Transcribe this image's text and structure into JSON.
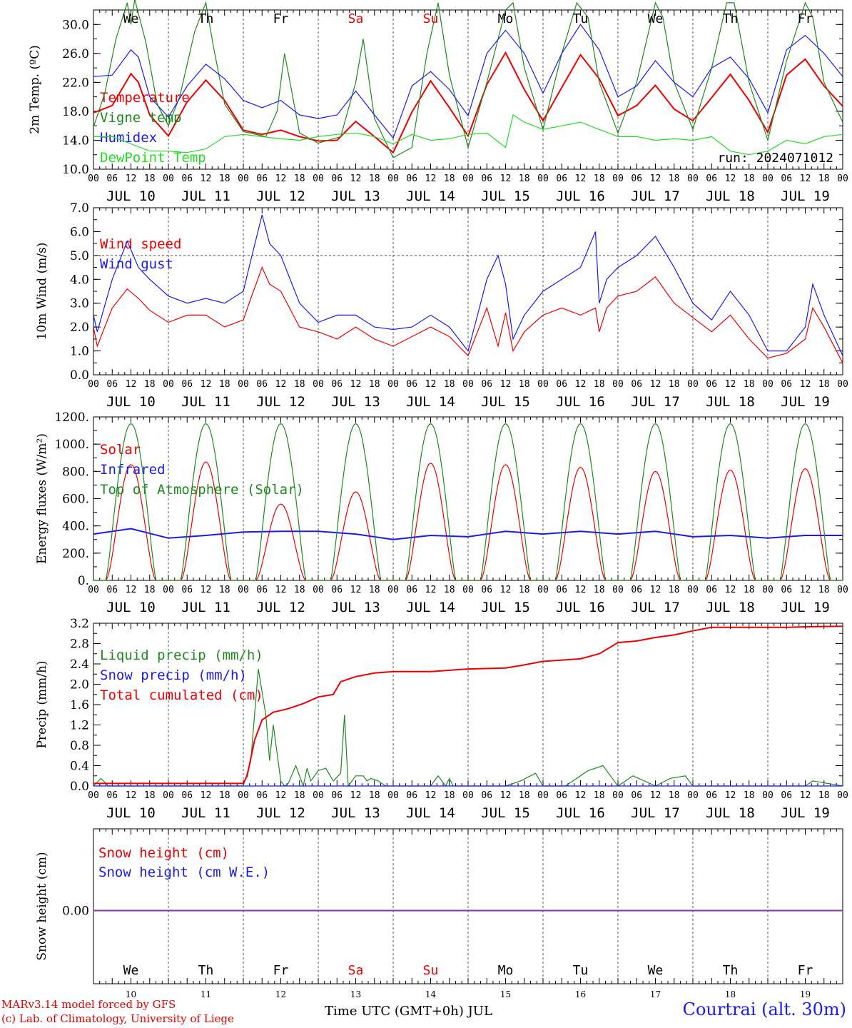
{
  "colors": {
    "red": "#ee0000",
    "darkgreen": "#1e8a1e",
    "blue": "#1a1aee",
    "lightgreen": "#22dd22",
    "weekend": "#ee0000",
    "purple": "#7a3aa0"
  },
  "weekdays": [
    "We",
    "Th",
    "Fr",
    "Sa",
    "Su",
    "Mo",
    "Tu",
    "We",
    "Th",
    "Fr"
  ],
  "weekend_flags": [
    false,
    false,
    false,
    true,
    true,
    false,
    false,
    false,
    false,
    false
  ],
  "hour_ticks": [
    "00",
    "06",
    "12",
    "18"
  ],
  "date_labels": [
    "JUL 10",
    "JUL 11",
    "JUL 12",
    "JUL 13",
    "JUL 14",
    "JUL 15",
    "JUL 16",
    "JUL 17",
    "JUL 18",
    "JUL 19"
  ],
  "day_numbers": [
    "10",
    "11",
    "12",
    "13",
    "14",
    "15",
    "16",
    "17",
    "18",
    "19"
  ],
  "footer": {
    "credit_line1": "MARv3.14 model forced by GFS",
    "credit_line2": "(c) Lab. of Climatology, University of Liege",
    "x_title": "Time UTC (GMT+0h) JUL",
    "station": "Courtrai (alt. 30m)"
  },
  "chart_data": [
    {
      "type": "line",
      "ylabel": "2m Temp. (ºC)",
      "ylim": [
        10,
        32
      ],
      "yticks": [
        "10.0",
        "14.0",
        "18.0",
        "22.0",
        "26.0",
        "30.0"
      ],
      "run_label": "run: 2024071012",
      "x_unit": "days since JUL 10 00 UTC",
      "series": [
        {
          "name": "Temperature",
          "color": "#ee0000",
          "x": [
            0,
            0.25,
            0.5,
            0.6,
            0.75,
            1,
            1.25,
            1.5,
            1.75,
            2,
            2.25,
            2.5,
            2.75,
            3,
            3.25,
            3.5,
            3.75,
            4,
            4.25,
            4.5,
            4.75,
            5,
            5.25,
            5.5,
            5.75,
            6,
            6.25,
            6.5,
            6.75,
            7,
            7.25,
            7.5,
            7.75,
            8,
            8.25,
            8.5,
            8.75,
            9,
            9.25,
            9.5,
            9.75,
            10
          ],
          "y": [
            17.8,
            18.8,
            23.2,
            22.0,
            17.5,
            14.6,
            19.3,
            22.3,
            19.5,
            15.4,
            14.8,
            15.4,
            14.5,
            13.9,
            14.0,
            16.6,
            14.5,
            12.3,
            17.9,
            22.2,
            18.5,
            14.6,
            21.7,
            26.1,
            21.0,
            16.7,
            21.3,
            25.8,
            22.5,
            17.4,
            18.8,
            21.6,
            18.3,
            16.7,
            19.9,
            23.1,
            19.5,
            15.1,
            23.0,
            25.2,
            21.5,
            18.7
          ]
        },
        {
          "name": "Vigne temp",
          "color": "#1e8a1e",
          "x": [
            0,
            0.15,
            0.3,
            0.45,
            0.5,
            0.55,
            0.7,
            0.85,
            1,
            1.15,
            1.35,
            1.5,
            1.6,
            1.75,
            2,
            2.3,
            2.45,
            2.55,
            2.75,
            3,
            3.3,
            3.5,
            3.6,
            3.75,
            4,
            4.25,
            4.45,
            4.6,
            4.75,
            5,
            5.25,
            5.5,
            5.6,
            5.75,
            6,
            6.25,
            6.45,
            6.6,
            6.75,
            7,
            7.25,
            7.5,
            7.6,
            7.75,
            8,
            8.25,
            8.45,
            8.55,
            8.75,
            9,
            9.25,
            9.5,
            9.6,
            9.75,
            10
          ],
          "y": [
            15.8,
            20.5,
            28.0,
            33.0,
            30.0,
            33.5,
            27.5,
            19.0,
            16.0,
            20.0,
            29.0,
            33.0,
            27.0,
            19.0,
            15.2,
            14.5,
            18.0,
            26.0,
            15.0,
            13.6,
            14.5,
            22.0,
            28.0,
            17.0,
            11.6,
            13.0,
            26.0,
            33.0,
            23.0,
            13.0,
            22.0,
            32.0,
            33.0,
            24.0,
            15.5,
            26.0,
            33.0,
            31.0,
            22.0,
            15.0,
            22.0,
            33.0,
            31.0,
            22.0,
            15.5,
            24.0,
            33.0,
            33.0,
            22.0,
            14.0,
            25.0,
            33.0,
            31.0,
            22.0,
            16.5
          ]
        },
        {
          "name": "Humidex",
          "color": "#1a1aee",
          "x": [
            0,
            0.25,
            0.5,
            0.6,
            0.75,
            1,
            1.25,
            1.5,
            1.75,
            2,
            2.25,
            2.5,
            2.75,
            3,
            3.25,
            3.5,
            3.75,
            4,
            4.25,
            4.5,
            4.75,
            5,
            5.25,
            5.5,
            5.75,
            6,
            6.25,
            6.5,
            6.75,
            7,
            7.25,
            7.5,
            7.75,
            8,
            8.25,
            8.5,
            8.75,
            9,
            9.25,
            9.5,
            9.75,
            10
          ],
          "y": [
            22.8,
            23.0,
            26.5,
            25.5,
            20.0,
            17.2,
            21.5,
            24.5,
            22.5,
            19.5,
            18.5,
            19.5,
            17.5,
            17.0,
            17.5,
            20.8,
            17.5,
            14.3,
            21.5,
            23.5,
            21.0,
            17.4,
            26.0,
            29.2,
            26.0,
            20.5,
            26.0,
            30.0,
            26.5,
            20.0,
            21.5,
            25.0,
            22.0,
            20.0,
            24.0,
            25.5,
            22.5,
            17.8,
            26.5,
            28.5,
            26.0,
            22.8
          ]
        },
        {
          "name": "DewPoint Temp",
          "color": "#22dd22",
          "x": [
            0,
            0.25,
            0.5,
            0.75,
            1,
            1.25,
            1.5,
            1.75,
            2,
            2.25,
            2.5,
            2.75,
            3,
            3.25,
            3.5,
            3.75,
            4,
            4.25,
            4.5,
            4.75,
            5,
            5.25,
            5.5,
            5.6,
            5.75,
            6,
            6.25,
            6.5,
            6.75,
            7,
            7.25,
            7.5,
            7.75,
            8,
            8.25,
            8.5,
            8.75,
            9,
            9.25,
            9.5,
            9.75,
            10
          ],
          "y": [
            14.5,
            14.5,
            13.5,
            12.5,
            12.5,
            12.3,
            12.8,
            14.5,
            14.8,
            14.5,
            14.2,
            14.0,
            14.5,
            14.8,
            15.0,
            14.5,
            13.5,
            14.8,
            14.0,
            14.2,
            14.8,
            15.0,
            13.0,
            17.5,
            16.5,
            15.5,
            16.0,
            16.5,
            15.5,
            14.5,
            14.5,
            14.0,
            14.2,
            14.0,
            14.5,
            12.5,
            12.0,
            12.5,
            14.0,
            13.5,
            14.5,
            14.8
          ]
        }
      ]
    },
    {
      "type": "line",
      "ylabel": "10m Wind (m/s)",
      "ylim": [
        0,
        7
      ],
      "yticks": [
        "0.0",
        "1.0",
        "2.0",
        "3.0",
        "4.0",
        "5.0",
        "6.0",
        "7.0"
      ],
      "ref_line": 5.0,
      "series": [
        {
          "name": "Wind speed",
          "color": "#ee0000",
          "x": [
            0,
            0.05,
            0.25,
            0.45,
            0.6,
            0.75,
            1,
            1.25,
            1.5,
            1.75,
            2,
            2.1,
            2.25,
            2.35,
            2.5,
            2.75,
            3,
            3.25,
            3.5,
            3.75,
            4,
            4.25,
            4.5,
            4.75,
            5,
            5.25,
            5.4,
            5.5,
            5.6,
            5.75,
            6,
            6.25,
            6.5,
            6.7,
            6.75,
            6.85,
            7,
            7.25,
            7.5,
            7.75,
            8,
            8.25,
            8.5,
            8.75,
            9,
            9.25,
            9.5,
            9.6,
            9.75,
            10
          ],
          "y": [
            2.0,
            1.2,
            2.8,
            3.6,
            3.2,
            2.7,
            2.2,
            2.5,
            2.5,
            2.0,
            2.3,
            3.2,
            4.5,
            3.8,
            3.5,
            2.0,
            1.8,
            1.5,
            2.0,
            1.5,
            1.2,
            1.6,
            2.0,
            1.6,
            0.8,
            2.8,
            1.2,
            2.6,
            1.0,
            1.8,
            2.5,
            2.8,
            2.5,
            2.8,
            1.8,
            2.8,
            3.3,
            3.5,
            4.1,
            3.0,
            2.4,
            1.8,
            2.5,
            1.5,
            0.7,
            0.9,
            1.5,
            2.8,
            2.0,
            0.5
          ]
        },
        {
          "name": "Wind gust",
          "color": "#1a1aee",
          "x": [
            0,
            0.05,
            0.25,
            0.45,
            0.6,
            0.75,
            1,
            1.25,
            1.5,
            1.75,
            2,
            2.1,
            2.25,
            2.35,
            2.5,
            2.75,
            3,
            3.25,
            3.5,
            3.75,
            4,
            4.25,
            4.5,
            4.75,
            5,
            5.25,
            5.4,
            5.5,
            5.6,
            5.75,
            6,
            6.25,
            6.5,
            6.7,
            6.75,
            6.85,
            7,
            7.25,
            7.5,
            7.75,
            8,
            8.25,
            8.5,
            8.75,
            9,
            9.25,
            9.5,
            9.6,
            9.75,
            10
          ],
          "y": [
            2.5,
            1.8,
            4.0,
            5.6,
            4.5,
            4.0,
            3.3,
            3.0,
            3.2,
            3.0,
            3.5,
            4.8,
            6.7,
            5.5,
            5.0,
            3.0,
            2.2,
            2.5,
            2.5,
            2.0,
            1.9,
            2.0,
            2.5,
            2.0,
            1.0,
            4.0,
            5.0,
            3.8,
            1.5,
            2.5,
            3.5,
            4.0,
            4.5,
            6.0,
            3.0,
            4.0,
            4.5,
            5.0,
            5.8,
            4.5,
            3.0,
            2.3,
            3.5,
            2.5,
            1.0,
            1.0,
            2.0,
            3.8,
            2.5,
            0.8
          ]
        }
      ]
    },
    {
      "type": "line",
      "ylabel": "Energy fluxes (W/m²)",
      "ylim": [
        0,
        1200
      ],
      "yticks": [
        "0.",
        "200.",
        "400.",
        "600.",
        "800.",
        "1000.",
        "1200."
      ],
      "series": [
        {
          "name": "Solar",
          "color": "#ee0000",
          "daily_peaks": [
            850,
            870,
            560,
            650,
            860,
            850,
            830,
            800,
            810,
            820
          ]
        },
        {
          "name": "Infrared",
          "color": "#1a1aee",
          "x": [
            0,
            0.5,
            1,
            1.5,
            2,
            2.5,
            3,
            3.5,
            4,
            4.5,
            5,
            5.5,
            6,
            6.5,
            7,
            7.5,
            8,
            8.5,
            9,
            9.5,
            10
          ],
          "y": [
            340,
            380,
            310,
            330,
            355,
            360,
            360,
            340,
            300,
            330,
            320,
            360,
            340,
            360,
            340,
            360,
            320,
            330,
            310,
            330,
            330
          ]
        },
        {
          "name": "Top of Atmosphere (Solar)",
          "color": "#1e8a1e",
          "daily_peaks": [
            1150,
            1150,
            1150,
            1150,
            1150,
            1150,
            1150,
            1150,
            1150,
            1150
          ]
        }
      ]
    },
    {
      "type": "line",
      "ylabel": "Precip (mm/h)",
      "ylim": [
        0,
        3.2
      ],
      "yticks": [
        "0.0",
        "0.4",
        "0.8",
        "1.2",
        "1.6",
        "2.0",
        "2.4",
        "2.8",
        "3.2"
      ],
      "series": [
        {
          "name": "Liquid precip (mm/h)",
          "color": "#1e8a1e",
          "x": [
            0,
            0.1,
            0.2,
            0.25,
            2.0,
            2.1,
            2.2,
            2.3,
            2.35,
            2.4,
            2.5,
            2.55,
            2.6,
            2.7,
            2.8,
            2.85,
            2.9,
            3.0,
            3.1,
            3.2,
            3.3,
            3.35,
            3.4,
            3.5,
            3.6,
            3.65,
            3.7,
            3.8,
            3.9,
            4.0,
            4.5,
            4.6,
            4.7,
            4.75,
            4.8,
            5.0,
            5.5,
            5.7,
            5.9,
            6.0,
            6.3,
            6.6,
            6.8,
            6.9,
            7.0,
            7.2,
            7.5,
            7.7,
            7.9,
            8.0,
            8.1,
            9.5,
            9.6,
            10
          ],
          "y": [
            0,
            0.15,
            0,
            0,
            0,
            0.5,
            2.3,
            1.4,
            0.5,
            1.2,
            0.1,
            0,
            0.05,
            0.4,
            0,
            0.35,
            0.1,
            0.3,
            0.35,
            0.1,
            0.25,
            1.4,
            0,
            0.2,
            0.2,
            0.1,
            0.15,
            0.1,
            0,
            0,
            0,
            0.2,
            0,
            0.15,
            0,
            0,
            0,
            0.1,
            0.25,
            0,
            0,
            0.3,
            0.4,
            0.2,
            0,
            0.2,
            0,
            0.15,
            0.2,
            0,
            0,
            0,
            0.1,
            0
          ]
        },
        {
          "name": "Snow precip (mm/h)",
          "color": "#1a1aee",
          "x": [
            0,
            10
          ],
          "y": [
            0,
            0
          ]
        },
        {
          "name": "Total cumulated (cm)",
          "color": "#ee0000",
          "x": [
            0,
            1,
            2,
            2.05,
            2.15,
            2.25,
            2.4,
            2.6,
            2.8,
            3.0,
            3.2,
            3.3,
            3.5,
            3.75,
            4,
            4.5,
            5,
            5.5,
            5.75,
            6,
            6.5,
            6.75,
            7.0,
            7.25,
            7.5,
            7.75,
            8.0,
            8.25,
            9,
            9.25,
            9.5,
            10
          ],
          "y": [
            0.05,
            0.05,
            0.05,
            0.2,
            0.9,
            1.3,
            1.45,
            1.52,
            1.62,
            1.75,
            1.8,
            2.05,
            2.15,
            2.22,
            2.25,
            2.25,
            2.3,
            2.32,
            2.38,
            2.45,
            2.5,
            2.6,
            2.82,
            2.85,
            2.92,
            2.97,
            3.05,
            3.12,
            3.12,
            3.12,
            3.13,
            3.14
          ]
        }
      ]
    },
    {
      "type": "line",
      "ylabel": "Snow height (cm)",
      "yticks": [
        "0.00"
      ],
      "series": [
        {
          "name": "Snow height (cm)",
          "color": "#ee0000",
          "x": [
            0,
            10
          ],
          "y": [
            0,
            0
          ]
        },
        {
          "name": "Snow height (cm W.E.)",
          "color": "#1a1aee",
          "x": [
            0,
            10
          ],
          "y": [
            0,
            0
          ]
        }
      ]
    }
  ]
}
